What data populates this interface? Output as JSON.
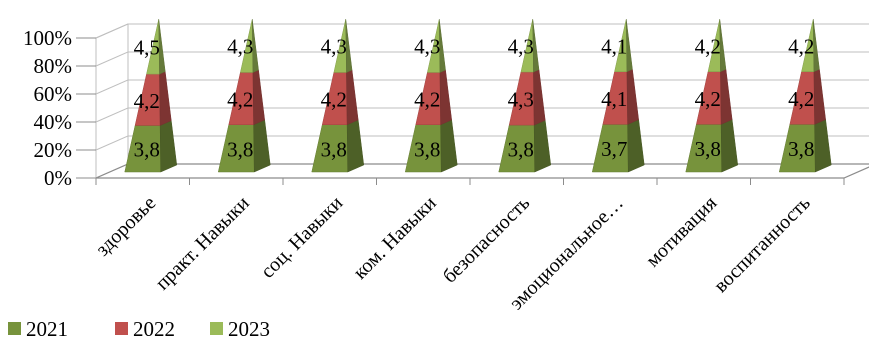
{
  "chart_data": {
    "type": "bar",
    "subtype": "stacked-percent-3d-pyramid",
    "title": "",
    "xlabel": "",
    "ylabel": "",
    "ylim": [
      0,
      100
    ],
    "y_ticks": [
      "0%",
      "20%",
      "40%",
      "60%",
      "80%",
      "100%"
    ],
    "grid": true,
    "legend_position": "bottom-left",
    "categories": [
      "здоровье",
      "практ. Навыки",
      "соц. Навыки",
      "ком. Навыки",
      "безопасность",
      "эмоциональное…",
      "мотивация",
      "воспитанность"
    ],
    "series": [
      {
        "name": "2021",
        "color": "#77933c",
        "values": [
          3.8,
          3.8,
          3.8,
          3.8,
          3.8,
          3.7,
          3.8,
          3.8
        ],
        "labels": [
          "3,8",
          "3,8",
          "3,8",
          "3,8",
          "3,8",
          "3,7",
          "3,8",
          "3,8"
        ]
      },
      {
        "name": "2022",
        "color": "#c0504d",
        "values": [
          4.2,
          4.2,
          4.2,
          4.2,
          4.3,
          4.1,
          4.2,
          4.2
        ],
        "labels": [
          "4,2",
          "4,2",
          "4,2",
          "4,2",
          "4,3",
          "4,1",
          "4,2",
          "4,2"
        ]
      },
      {
        "name": "2023",
        "color": "#9bbb59",
        "values": [
          4.5,
          4.3,
          4.3,
          4.3,
          4.3,
          4.1,
          4.2,
          4.2
        ],
        "labels": [
          "4,5",
          "4,3",
          "4,3",
          "4,3",
          "4,3",
          "4,1",
          "4,2",
          "4,2"
        ]
      }
    ]
  }
}
